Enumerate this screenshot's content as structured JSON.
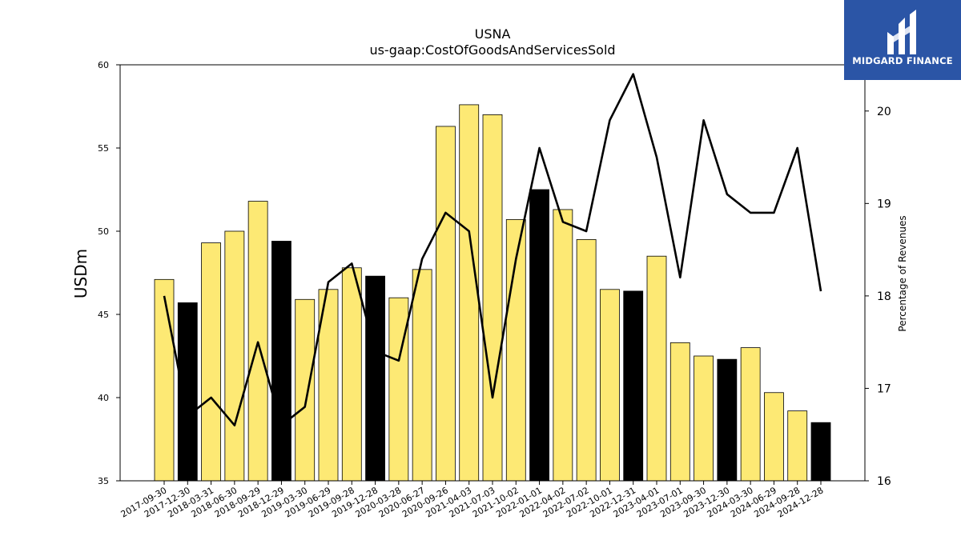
{
  "brand": {
    "name": "MIDGARD FINANCE"
  },
  "colors": {
    "bar_regular": "#fde974",
    "bar_q4": "#000000",
    "line": "#000000",
    "logo_bg": "#2b55a6"
  },
  "chart_data": {
    "type": "bar",
    "title": "USNA",
    "subtitle": "us-gaap:CostOfGoodsAndServicesSold",
    "ylabel": "USDm",
    "y2label": "Percentage of Revenues",
    "ylim": [
      35,
      60
    ],
    "y2lim": [
      16,
      20.5
    ],
    "yticks": [
      35,
      40,
      45,
      50,
      55,
      60
    ],
    "y2ticks": [
      16,
      17,
      18,
      19,
      20
    ],
    "categories": [
      "2017-09-30",
      "2017-12-30",
      "2018-03-31",
      "2018-06-30",
      "2018-09-29",
      "2018-12-29",
      "2019-03-30",
      "2019-06-29",
      "2019-09-28",
      "2019-12-28",
      "2020-03-28",
      "2020-06-27",
      "2020-09-26",
      "2021-04-03",
      "2021-07-03",
      "2021-10-02",
      "2022-01-01",
      "2022-04-02",
      "2022-07-02",
      "2022-10-01",
      "2022-12-31",
      "2023-04-01",
      "2023-07-01",
      "2023-09-30",
      "2023-12-30",
      "2024-03-30",
      "2024-06-29",
      "2024-09-28",
      "2024-12-28"
    ],
    "series": [
      {
        "type": "bar",
        "values": [
          47.1,
          45.7,
          49.3,
          50.0,
          51.8,
          49.4,
          45.9,
          46.5,
          47.8,
          47.3,
          46.0,
          47.7,
          56.3,
          57.6,
          57.0,
          50.7,
          52.5,
          51.3,
          49.5,
          46.5,
          46.4,
          48.5,
          43.3,
          42.5,
          42.3,
          43.0,
          40.3,
          39.2,
          38.5
        ],
        "highlight": [
          false,
          true,
          false,
          false,
          false,
          true,
          false,
          false,
          false,
          true,
          false,
          false,
          false,
          false,
          false,
          false,
          true,
          false,
          false,
          false,
          true,
          false,
          false,
          false,
          true,
          false,
          false,
          false,
          true
        ]
      },
      {
        "type": "line",
        "axis": "right",
        "values": [
          18.0,
          16.7,
          16.9,
          16.6,
          17.5,
          16.6,
          16.8,
          18.15,
          18.35,
          17.4,
          17.3,
          18.4,
          18.9,
          18.7,
          16.9,
          18.4,
          19.6,
          18.8,
          18.7,
          19.9,
          20.4,
          19.5,
          18.2,
          19.9,
          19.1,
          18.9,
          18.9,
          19.6,
          18.05
        ]
      }
    ]
  }
}
